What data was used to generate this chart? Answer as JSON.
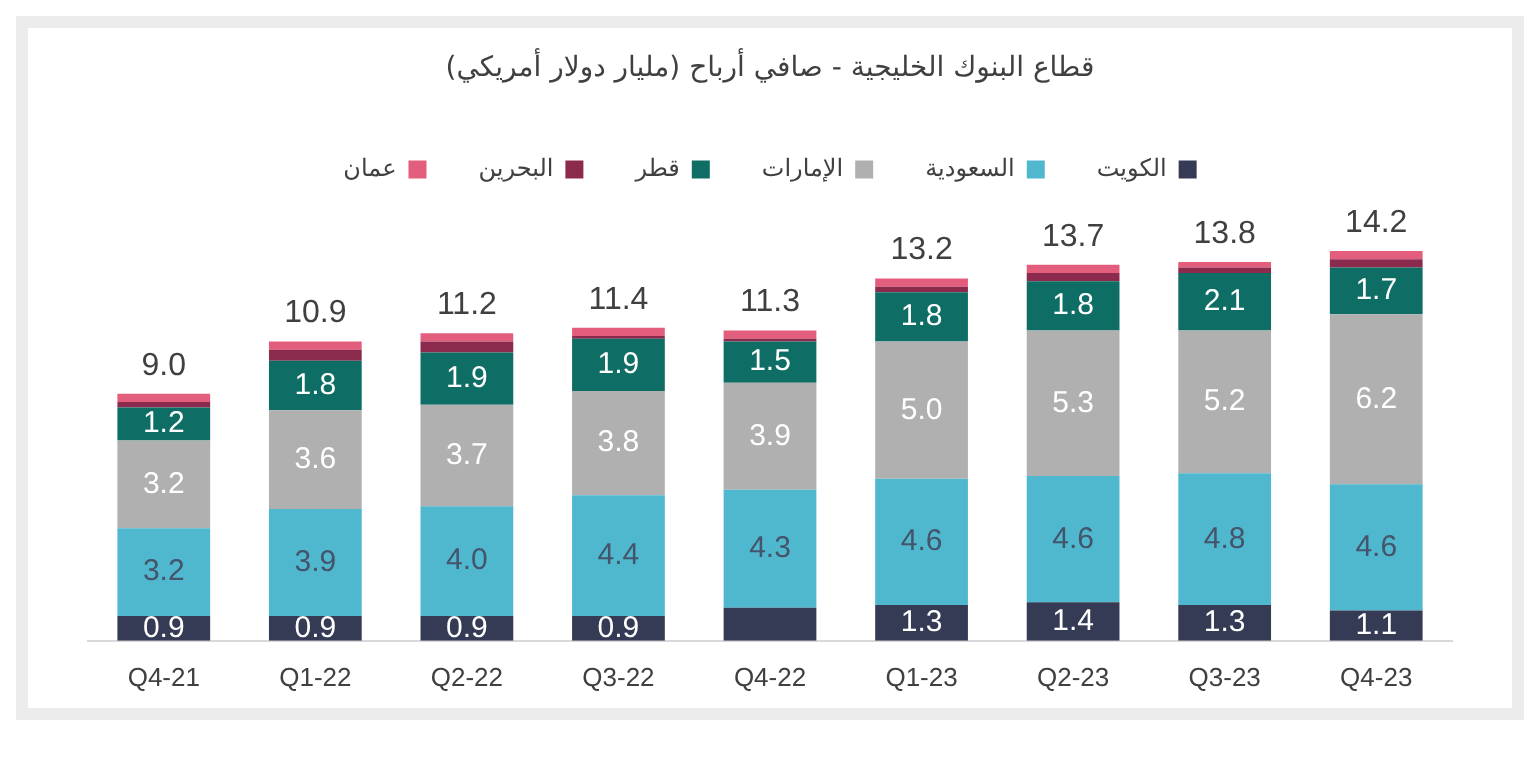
{
  "chart_data": {
    "type": "bar",
    "title": "قطاع البنوك الخليجية - صافي أرباح (مليار دولار أمريكي)",
    "categories": [
      "Q4-21",
      "Q1-22",
      "Q2-22",
      "Q3-22",
      "Q4-22",
      "Q1-23",
      "Q2-23",
      "Q3-23",
      "Q4-23"
    ],
    "stacked": true,
    "legend": "top",
    "grid": false,
    "tick_labels": "x",
    "series": [
      {
        "name": "الكويت",
        "color": "#353b55",
        "values": [
          0.9,
          0.9,
          0.9,
          0.9,
          1.2,
          1.3,
          1.4,
          1.3,
          1.1
        ],
        "value_labels": [
          "0.9",
          "0.9",
          "0.9",
          "0.9",
          null,
          "1.3",
          "1.4",
          "1.3",
          "1.1"
        ]
      },
      {
        "name": "السعودية",
        "color": "#4fb8cf",
        "values": [
          3.2,
          3.9,
          4.0,
          4.4,
          4.3,
          4.6,
          4.6,
          4.8,
          4.6
        ],
        "value_labels": [
          "3.2",
          "3.9",
          "4.0",
          "4.4",
          "4.3",
          "4.6",
          "4.6",
          "4.8",
          "4.6"
        ]
      },
      {
        "name": "الإمارات",
        "color": "#b0b0b0",
        "values": [
          3.2,
          3.6,
          3.7,
          3.8,
          3.9,
          5.0,
          5.3,
          5.2,
          6.2
        ],
        "value_labels": [
          "3.2",
          "3.6",
          "3.7",
          "3.8",
          "3.9",
          "5.0",
          "5.3",
          "5.2",
          "6.2"
        ]
      },
      {
        "name": "قطر",
        "color": "#0e6e65",
        "values": [
          1.2,
          1.8,
          1.9,
          1.9,
          1.5,
          1.8,
          1.8,
          2.1,
          1.7
        ],
        "value_labels": [
          "1.2",
          "1.8",
          "1.9",
          "1.9",
          "1.5",
          "1.8",
          "1.8",
          "2.1",
          "1.7"
        ]
      },
      {
        "name": "البحرين",
        "color": "#8c2a4e",
        "values": [
          0.2,
          0.4,
          0.4,
          0.1,
          0.1,
          0.2,
          0.3,
          0.2,
          0.3
        ],
        "value_labels": [
          null,
          null,
          null,
          null,
          null,
          null,
          null,
          null,
          null
        ]
      },
      {
        "name": "عمان",
        "color": "#e35d7c",
        "values": [
          0.3,
          0.3,
          0.3,
          0.3,
          0.3,
          0.3,
          0.3,
          0.2,
          0.3
        ],
        "value_labels": [
          null,
          null,
          null,
          null,
          null,
          null,
          null,
          null,
          null
        ]
      }
    ],
    "totals": [
      "9.0",
      "10.9",
      "11.2",
      "11.4",
      "11.3",
      "13.2",
      "13.7",
      "13.8",
      "14.2"
    ]
  }
}
